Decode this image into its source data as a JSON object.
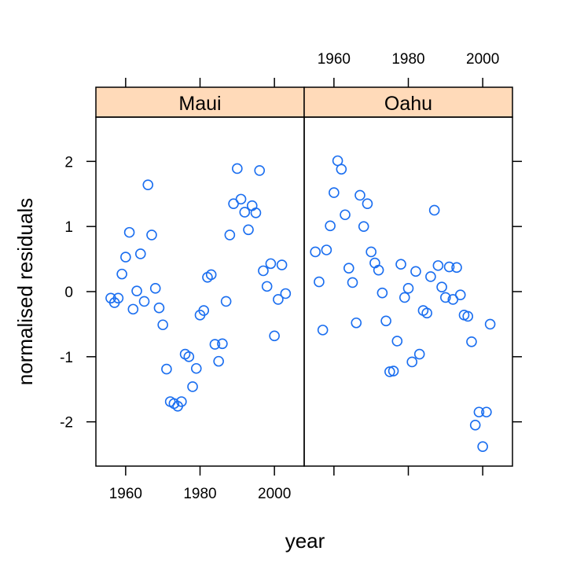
{
  "chart_data": {
    "type": "scatter",
    "xlabel": "year",
    "ylabel": "normalised residuals",
    "xlim": [
      1952,
      2008
    ],
    "ylim": [
      -2.68,
      2.68
    ],
    "x_ticks": [
      1960,
      1980,
      2000
    ],
    "y_ticks": [
      -2,
      -1,
      0,
      1,
      2
    ],
    "marker": "open-circle",
    "marker_color": "#1a6ef0",
    "strip_color": "#ffdab9",
    "panels": [
      {
        "name": "Maui",
        "points": [
          {
            "x": 1956,
            "y": -0.1
          },
          {
            "x": 1957,
            "y": -0.17
          },
          {
            "x": 1958,
            "y": -0.1
          },
          {
            "x": 1959,
            "y": 0.27
          },
          {
            "x": 1960,
            "y": 0.53
          },
          {
            "x": 1961,
            "y": 0.91
          },
          {
            "x": 1962,
            "y": -0.27
          },
          {
            "x": 1963,
            "y": 0.01
          },
          {
            "x": 1964,
            "y": 0.58
          },
          {
            "x": 1965,
            "y": -0.15
          },
          {
            "x": 1966,
            "y": 1.64
          },
          {
            "x": 1967,
            "y": 0.87
          },
          {
            "x": 1968,
            "y": 0.05
          },
          {
            "x": 1969,
            "y": -0.25
          },
          {
            "x": 1970,
            "y": -0.51
          },
          {
            "x": 1971,
            "y": -1.19
          },
          {
            "x": 1972,
            "y": -1.69
          },
          {
            "x": 1973,
            "y": -1.72
          },
          {
            "x": 1974,
            "y": -1.76
          },
          {
            "x": 1975,
            "y": -1.69
          },
          {
            "x": 1976,
            "y": -0.96
          },
          {
            "x": 1977,
            "y": -1.0
          },
          {
            "x": 1978,
            "y": -1.46
          },
          {
            "x": 1979,
            "y": -1.18
          },
          {
            "x": 1980,
            "y": -0.36
          },
          {
            "x": 1981,
            "y": -0.29
          },
          {
            "x": 1982,
            "y": 0.22
          },
          {
            "x": 1983,
            "y": 0.26
          },
          {
            "x": 1984,
            "y": -0.81
          },
          {
            "x": 1985,
            "y": -1.07
          },
          {
            "x": 1986,
            "y": -0.8
          },
          {
            "x": 1987,
            "y": -0.15
          },
          {
            "x": 1988,
            "y": 0.87
          },
          {
            "x": 1989,
            "y": 1.35
          },
          {
            "x": 1990,
            "y": 1.89
          },
          {
            "x": 1991,
            "y": 1.42
          },
          {
            "x": 1992,
            "y": 1.22
          },
          {
            "x": 1993,
            "y": 0.95
          },
          {
            "x": 1994,
            "y": 1.32
          },
          {
            "x": 1995,
            "y": 1.21
          },
          {
            "x": 1996,
            "y": 1.86
          },
          {
            "x": 1997,
            "y": 0.32
          },
          {
            "x": 1998,
            "y": 0.08
          },
          {
            "x": 1999,
            "y": 0.43
          },
          {
            "x": 2000,
            "y": -0.68
          },
          {
            "x": 2001,
            "y": -0.12
          },
          {
            "x": 2002,
            "y": 0.41
          },
          {
            "x": 2003,
            "y": -0.03
          }
        ]
      },
      {
        "name": "Oahu",
        "points": [
          {
            "x": 1955,
            "y": 0.61
          },
          {
            "x": 1956,
            "y": 0.15
          },
          {
            "x": 1957,
            "y": -0.59
          },
          {
            "x": 1958,
            "y": 0.64
          },
          {
            "x": 1959,
            "y": 1.01
          },
          {
            "x": 1960,
            "y": 1.52
          },
          {
            "x": 1961,
            "y": 2.01
          },
          {
            "x": 1962,
            "y": 1.88
          },
          {
            "x": 1963,
            "y": 1.18
          },
          {
            "x": 1964,
            "y": 0.36
          },
          {
            "x": 1965,
            "y": 0.14
          },
          {
            "x": 1966,
            "y": -0.48
          },
          {
            "x": 1967,
            "y": 1.48
          },
          {
            "x": 1968,
            "y": 1.0
          },
          {
            "x": 1969,
            "y": 1.35
          },
          {
            "x": 1970,
            "y": 0.61
          },
          {
            "x": 1971,
            "y": 0.44
          },
          {
            "x": 1972,
            "y": 0.33
          },
          {
            "x": 1973,
            "y": -0.02
          },
          {
            "x": 1974,
            "y": -0.45
          },
          {
            "x": 1975,
            "y": -1.23
          },
          {
            "x": 1976,
            "y": -1.22
          },
          {
            "x": 1977,
            "y": -0.76
          },
          {
            "x": 1978,
            "y": 0.42
          },
          {
            "x": 1979,
            "y": -0.09
          },
          {
            "x": 1980,
            "y": 0.05
          },
          {
            "x": 1981,
            "y": -1.08
          },
          {
            "x": 1982,
            "y": 0.31
          },
          {
            "x": 1983,
            "y": -0.96
          },
          {
            "x": 1984,
            "y": -0.29
          },
          {
            "x": 1985,
            "y": -0.33
          },
          {
            "x": 1986,
            "y": 0.23
          },
          {
            "x": 1987,
            "y": 1.25
          },
          {
            "x": 1988,
            "y": 0.4
          },
          {
            "x": 1989,
            "y": 0.07
          },
          {
            "x": 1990,
            "y": -0.09
          },
          {
            "x": 1991,
            "y": 0.38
          },
          {
            "x": 1992,
            "y": -0.12
          },
          {
            "x": 1993,
            "y": 0.37
          },
          {
            "x": 1994,
            "y": -0.05
          },
          {
            "x": 1995,
            "y": -0.36
          },
          {
            "x": 1996,
            "y": -0.38
          },
          {
            "x": 1997,
            "y": -0.77
          },
          {
            "x": 1998,
            "y": -2.05
          },
          {
            "x": 1999,
            "y": -1.85
          },
          {
            "x": 2000,
            "y": -2.38
          },
          {
            "x": 2001,
            "y": -1.85
          },
          {
            "x": 2002,
            "y": -0.5
          }
        ]
      }
    ]
  }
}
